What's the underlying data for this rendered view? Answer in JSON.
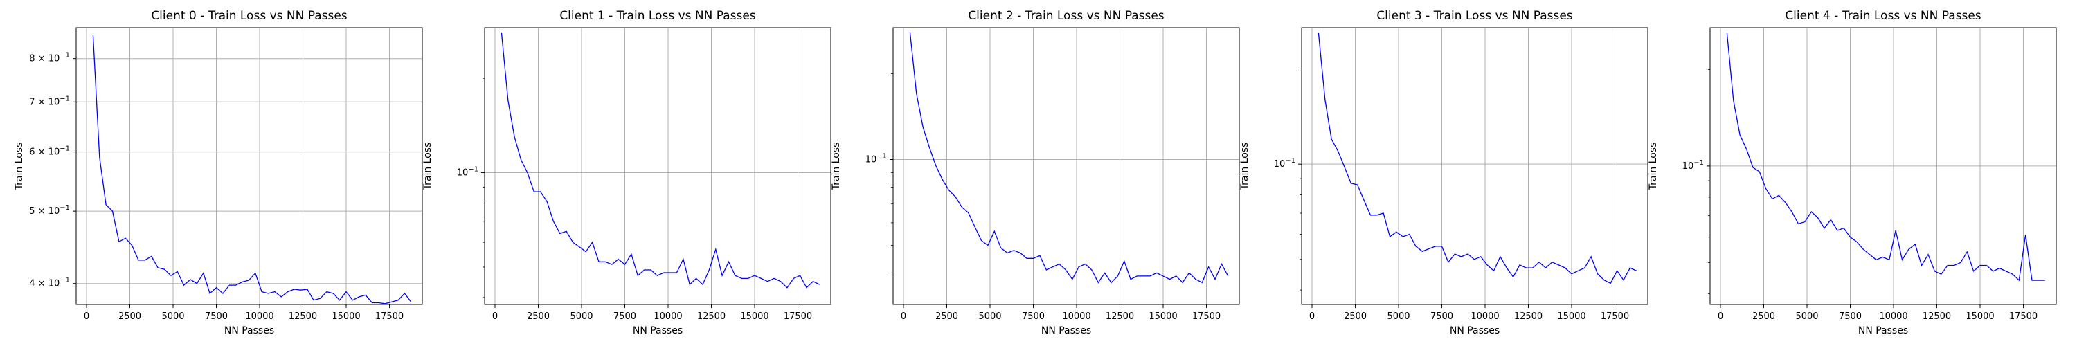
{
  "chart_data": [
    {
      "type": "line",
      "title": "Client 0 - Train Loss vs NN Passes",
      "xlabel": "NN Passes",
      "ylabel": "Train Loss",
      "yscale": "log",
      "grid": true,
      "xlim": [
        -600,
        19400
      ],
      "ylim": [
        0.375,
        0.88
      ],
      "xticks": [
        0,
        2500,
        5000,
        7500,
        10000,
        12500,
        15000,
        17500
      ],
      "xtick_labels": [
        "0",
        "2500",
        "5000",
        "7500",
        "10000",
        "12500",
        "15000",
        "17500"
      ],
      "yticks": [
        0.4,
        0.5,
        0.6,
        0.7,
        0.8
      ],
      "ytick_labels": [
        {
          "base": "4 × 10",
          "exp": "−1"
        },
        {
          "base": "5 × 10",
          "exp": "−1"
        },
        {
          "base": "6 × 10",
          "exp": "−1"
        },
        {
          "base": "7 × 10",
          "exp": "−1"
        },
        {
          "base": "8 × 10",
          "exp": "−1"
        }
      ],
      "series": [
        {
          "color": "#0000ff",
          "x": [
            375,
            750,
            1125,
            1500,
            1875,
            2250,
            2625,
            3000,
            3375,
            3750,
            4125,
            4500,
            4875,
            5250,
            5625,
            6000,
            6375,
            6750,
            7125,
            7500,
            7875,
            8250,
            8625,
            9000,
            9375,
            9750,
            10125,
            10500,
            10875,
            11250,
            11625,
            12000,
            12375,
            12750,
            13125,
            13500,
            13875,
            14250,
            14625,
            15000,
            15375,
            15750,
            16125,
            16500,
            16875,
            17250,
            17625,
            18000,
            18375,
            18750
          ],
          "y": [
            0.86,
            0.59,
            0.51,
            0.5,
            0.455,
            0.46,
            0.45,
            0.43,
            0.43,
            0.435,
            0.42,
            0.418,
            0.41,
            0.415,
            0.398,
            0.405,
            0.4,
            0.413,
            0.388,
            0.395,
            0.388,
            0.398,
            0.398,
            0.402,
            0.404,
            0.413,
            0.39,
            0.388,
            0.39,
            0.384,
            0.39,
            0.393,
            0.392,
            0.393,
            0.38,
            0.382,
            0.39,
            0.388,
            0.38,
            0.39,
            0.38,
            0.384,
            0.386,
            0.377,
            0.377,
            0.376,
            0.378,
            0.38,
            0.388,
            0.378
          ]
        }
      ]
    },
    {
      "type": "line",
      "title": "Client 1 - Train Loss vs NN Passes",
      "xlabel": "NN Passes",
      "ylabel": "Train Loss",
      "yscale": "log",
      "grid": true,
      "xlim": [
        -600,
        19400
      ],
      "ylim": [
        0.038,
        0.29
      ],
      "xticks": [
        0,
        2500,
        5000,
        7500,
        10000,
        12500,
        15000,
        17500
      ],
      "xtick_labels": [
        "0",
        "2500",
        "5000",
        "7500",
        "10000",
        "12500",
        "15000",
        "17500"
      ],
      "yticks": [
        0.1
      ],
      "ytick_labels": [
        {
          "base": "10",
          "exp": "−1"
        }
      ],
      "series": [
        {
          "color": "#0000ff",
          "x": [
            375,
            750,
            1125,
            1500,
            1875,
            2250,
            2625,
            3000,
            3375,
            3750,
            4125,
            4500,
            4875,
            5250,
            5625,
            6000,
            6375,
            6750,
            7125,
            7500,
            7875,
            8250,
            8625,
            9000,
            9375,
            9750,
            10125,
            10500,
            10875,
            11250,
            11625,
            12000,
            12375,
            12750,
            13125,
            13500,
            13875,
            14250,
            14625,
            15000,
            15375,
            15750,
            16125,
            16500,
            16875,
            17250,
            17625,
            18000,
            18375,
            18750
          ],
          "y": [
            0.28,
            0.17,
            0.13,
            0.11,
            0.1,
            0.087,
            0.087,
            0.081,
            0.07,
            0.064,
            0.065,
            0.06,
            0.058,
            0.056,
            0.06,
            0.052,
            0.052,
            0.051,
            0.053,
            0.051,
            0.055,
            0.047,
            0.049,
            0.049,
            0.047,
            0.048,
            0.048,
            0.048,
            0.053,
            0.044,
            0.046,
            0.044,
            0.049,
            0.057,
            0.047,
            0.052,
            0.047,
            0.046,
            0.046,
            0.047,
            0.046,
            0.045,
            0.046,
            0.045,
            0.043,
            0.046,
            0.047,
            0.043,
            0.045,
            0.044
          ]
        }
      ]
    },
    {
      "type": "line",
      "title": "Client 2 - Train Loss vs NN Passes",
      "xlabel": "NN Passes",
      "ylabel": "Train Loss",
      "yscale": "log",
      "grid": true,
      "xlim": [
        -600,
        19400
      ],
      "ylim": [
        0.031,
        0.29
      ],
      "xticks": [
        0,
        2500,
        5000,
        7500,
        10000,
        12500,
        15000,
        17500
      ],
      "xtick_labels": [
        "0",
        "2500",
        "5000",
        "7500",
        "10000",
        "12500",
        "15000",
        "17500"
      ],
      "yticks": [
        0.1
      ],
      "ytick_labels": [
        {
          "base": "10",
          "exp": "−1"
        }
      ],
      "series": [
        {
          "color": "#0000ff",
          "x": [
            375,
            750,
            1125,
            1500,
            1875,
            2250,
            2625,
            3000,
            3375,
            3750,
            4125,
            4500,
            4875,
            5250,
            5625,
            6000,
            6375,
            6750,
            7125,
            7500,
            7875,
            8250,
            8625,
            9000,
            9375,
            9750,
            10125,
            10500,
            10875,
            11250,
            11625,
            12000,
            12375,
            12750,
            13125,
            13500,
            13875,
            14250,
            14625,
            15000,
            15375,
            15750,
            16125,
            16500,
            16875,
            17250,
            17625,
            18000,
            18375,
            18750
          ],
          "y": [
            0.28,
            0.17,
            0.13,
            0.11,
            0.095,
            0.085,
            0.078,
            0.074,
            0.068,
            0.065,
            0.058,
            0.052,
            0.05,
            0.056,
            0.049,
            0.047,
            0.048,
            0.047,
            0.045,
            0.045,
            0.046,
            0.041,
            0.042,
            0.043,
            0.041,
            0.038,
            0.042,
            0.043,
            0.041,
            0.037,
            0.04,
            0.037,
            0.039,
            0.044,
            0.038,
            0.039,
            0.039,
            0.039,
            0.04,
            0.039,
            0.038,
            0.039,
            0.037,
            0.04,
            0.038,
            0.037,
            0.042,
            0.038,
            0.043,
            0.039
          ]
        }
      ]
    },
    {
      "type": "line",
      "title": "Client 3 - Train Loss vs NN Passes",
      "xlabel": "NN Passes",
      "ylabel": "Train Loss",
      "yscale": "log",
      "grid": true,
      "xlim": [
        -600,
        19400
      ],
      "ylim": [
        0.036,
        0.27
      ],
      "xticks": [
        0,
        2500,
        5000,
        7500,
        10000,
        12500,
        15000,
        17500
      ],
      "xtick_labels": [
        "0",
        "2500",
        "5000",
        "7500",
        "10000",
        "12500",
        "15000",
        "17500"
      ],
      "yticks": [
        0.1
      ],
      "ytick_labels": [
        {
          "base": "10",
          "exp": "−1"
        }
      ],
      "series": [
        {
          "color": "#0000ff",
          "x": [
            375,
            750,
            1125,
            1500,
            1875,
            2250,
            2625,
            3000,
            3375,
            3750,
            4125,
            4500,
            4875,
            5250,
            5625,
            6000,
            6375,
            6750,
            7125,
            7500,
            7875,
            8250,
            8625,
            9000,
            9375,
            9750,
            10125,
            10500,
            10875,
            11250,
            11625,
            12000,
            12375,
            12750,
            13125,
            13500,
            13875,
            14250,
            14625,
            15000,
            15375,
            15750,
            16125,
            16500,
            16875,
            17250,
            17625,
            18000,
            18375,
            18750
          ],
          "y": [
            0.26,
            0.16,
            0.12,
            0.11,
            0.098,
            0.087,
            0.086,
            0.077,
            0.069,
            0.069,
            0.07,
            0.059,
            0.061,
            0.059,
            0.06,
            0.055,
            0.053,
            0.054,
            0.055,
            0.055,
            0.049,
            0.052,
            0.051,
            0.052,
            0.05,
            0.051,
            0.048,
            0.046,
            0.051,
            0.047,
            0.044,
            0.048,
            0.047,
            0.047,
            0.049,
            0.047,
            0.049,
            0.048,
            0.047,
            0.045,
            0.046,
            0.047,
            0.051,
            0.045,
            0.043,
            0.042,
            0.046,
            0.043,
            0.047,
            0.046
          ]
        }
      ]
    },
    {
      "type": "line",
      "title": "Client 4 - Train Loss vs NN Passes",
      "xlabel": "NN Passes",
      "ylabel": "Train Loss",
      "yscale": "log",
      "grid": true,
      "xlim": [
        -600,
        19400
      ],
      "ylim": [
        0.037,
        0.27
      ],
      "xticks": [
        0,
        2500,
        5000,
        7500,
        10000,
        12500,
        15000,
        17500
      ],
      "xtick_labels": [
        "0",
        "2500",
        "5000",
        "7500",
        "10000",
        "12500",
        "15000",
        "17500"
      ],
      "yticks": [
        0.1
      ],
      "ytick_labels": [
        {
          "base": "10",
          "exp": "−1"
        }
      ],
      "series": [
        {
          "color": "#0000ff",
          "x": [
            375,
            750,
            1125,
            1500,
            1875,
            2250,
            2625,
            3000,
            3375,
            3750,
            4125,
            4500,
            4875,
            5250,
            5625,
            6000,
            6375,
            6750,
            7125,
            7500,
            7875,
            8250,
            8625,
            9000,
            9375,
            9750,
            10125,
            10500,
            10875,
            11250,
            11625,
            12000,
            12375,
            12750,
            13125,
            13500,
            13875,
            14250,
            14625,
            15000,
            15375,
            15750,
            16125,
            16500,
            16875,
            17250,
            17625,
            18000,
            18375,
            18750
          ],
          "y": [
            0.26,
            0.16,
            0.125,
            0.113,
            0.099,
            0.096,
            0.085,
            0.079,
            0.081,
            0.077,
            0.072,
            0.066,
            0.067,
            0.072,
            0.069,
            0.064,
            0.068,
            0.063,
            0.064,
            0.06,
            0.058,
            0.055,
            0.053,
            0.051,
            0.052,
            0.051,
            0.063,
            0.051,
            0.055,
            0.057,
            0.049,
            0.053,
            0.047,
            0.046,
            0.049,
            0.049,
            0.05,
            0.054,
            0.047,
            0.049,
            0.049,
            0.047,
            0.048,
            0.047,
            0.046,
            0.044,
            0.061,
            0.044,
            0.044,
            0.044
          ]
        }
      ]
    }
  ]
}
